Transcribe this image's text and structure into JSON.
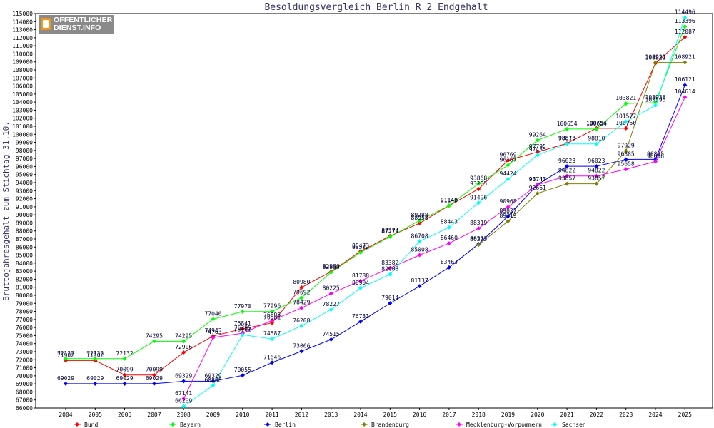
{
  "chart_data": {
    "type": "line",
    "title": "Besoldungsvergleich Berlin R 2 Endgehalt",
    "xlabel": "",
    "ylabel": "Bruttojahresgehalt zum Stichtag 31.10.",
    "ylim": [
      66000,
      115000
    ],
    "y_tick_step": 1000,
    "grid": false,
    "legend_position": "bottom",
    "x": [
      "2004",
      "2005",
      "2006",
      "2007",
      "2008",
      "2009",
      "2010",
      "2011",
      "2012",
      "2013",
      "2014",
      "2015",
      "2016",
      "2017",
      "2018",
      "2019",
      "2020",
      "2021",
      "2022",
      "2023",
      "2024",
      "2025"
    ],
    "series": [
      {
        "name": "Bund",
        "color": "#ff0000",
        "values": [
          71902,
          71902,
          70099,
          70099,
          72906,
          74943,
          75841,
          76581,
          80980,
          82936,
          85473,
          87374,
          88958,
          91140,
          93205,
          96769,
          97795,
          98873,
          100754,
          100750,
          108821,
          112087
        ],
        "labels": [
          "71902",
          "71902",
          "70099",
          "70099",
          "72906",
          "74943",
          "75841",
          "76581",
          "80980",
          "82936",
          "85473",
          "87374",
          "88958",
          "91140",
          "93205",
          "96769",
          "97795",
          "98873",
          "100754",
          "100750",
          "108821",
          "112087"
        ]
      },
      {
        "name": "Bayern",
        "color": "#00ff00",
        "values": [
          72132,
          72132,
          72132,
          74295,
          74295,
          77046,
          77970,
          77996,
          79692,
          82853,
          85322,
          87274,
          89288,
          91146,
          93868,
          96167,
          99264,
          100654,
          100654,
          103821,
          103936,
          113396
        ],
        "labels": [
          "72132",
          "72132",
          "72132",
          "74295",
          "74295",
          "77046",
          "77970",
          "77996",
          "79692",
          "82853",
          "85322",
          "87274",
          "89288",
          "91146",
          "93868",
          "96167",
          "99264",
          "100654",
          "100654",
          "103821",
          "103936",
          "113396"
        ]
      },
      {
        "name": "Berlin",
        "color": "#0000ff",
        "values": [
          69029,
          69029,
          69029,
          69029,
          69329,
          69329,
          70055,
          71646,
          73066,
          74515,
          76731,
          79014,
          81137,
          83463,
          86373,
          89827,
          93747,
          96023,
          96023,
          96885,
          96895,
          106121
        ],
        "labels": [
          "69029",
          "69029",
          "69029",
          "69029",
          "69329",
          "69329",
          "70055",
          "71646",
          "73066",
          "74515",
          "76731",
          "79014",
          "81137",
          "83463",
          "86373",
          "89827",
          "93747",
          "96023",
          "96023",
          "96885",
          "96895",
          "106121"
        ]
      },
      {
        "name": "Brandenburg",
        "color": "#808000",
        "values": [
          null,
          null,
          null,
          null,
          null,
          null,
          null,
          null,
          null,
          null,
          null,
          null,
          null,
          null,
          86273,
          89219,
          92661,
          93857,
          93857,
          97929,
          108921,
          108921
        ],
        "labels": [
          "",
          "",
          "",
          "",
          "",
          "",
          "",
          "",
          "",
          "",
          "",
          "",
          "",
          "",
          "86273",
          "89219",
          "92661",
          "93857",
          "93857",
          "97929",
          "108921",
          "108921"
        ]
      },
      {
        "name": "Mecklenburg-Vorpommern",
        "color": "#ff00ff",
        "values": [
          null,
          null,
          null,
          null,
          67141,
          74763,
          75295,
          76896,
          78429,
          80225,
          81788,
          83382,
          85008,
          86460,
          88319,
          90968,
          93743,
          94822,
          94822,
          95658,
          96618,
          104614
        ],
        "labels": [
          "",
          "",
          "",
          "",
          "67141",
          "74763",
          "75295",
          "76896",
          "78429",
          "80225",
          "81788",
          "83382",
          "85008",
          "86460",
          "88319",
          "90968",
          "93743",
          "94822",
          "94822",
          "95658",
          "96618",
          "104614"
        ]
      },
      {
        "name": "Sachsen",
        "color": "#00ffff",
        "values": [
          null,
          null,
          null,
          null,
          66209,
          68808,
          75101,
          74587,
          76208,
          78227,
          80904,
          82603,
          86708,
          88443,
          91496,
          94424,
          97435,
          98810,
          98810,
          101577,
          103595,
          114496
        ],
        "labels": [
          "",
          "",
          "",
          "",
          "66209",
          "68808",
          "75101",
          "74587",
          "76208",
          "78227",
          "80904",
          "82603",
          "86708",
          "88443",
          "91496",
          "94424",
          "97435",
          "98810",
          "98810",
          "101577",
          "103595",
          "114496"
        ]
      }
    ]
  },
  "logo": {
    "line1": "OFFENTLICHER",
    "line2": "DIENST.INFO",
    "icon": "document-icon"
  }
}
